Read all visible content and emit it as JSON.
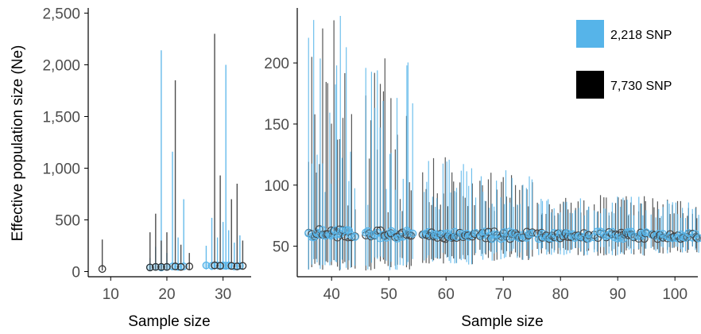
{
  "colors": {
    "snp_2218": "#56b4e9",
    "snp_7730": "#000000",
    "axis": "#000000",
    "tick_text": "#4d4d4d"
  },
  "ylabel": "Effective population size (Ne)",
  "legend": [
    {
      "label": "2,218 SNP",
      "color": "#56b4e9"
    },
    {
      "label": "7,730 SNP",
      "color": "#000000"
    }
  ],
  "chart_data": [
    {
      "type": "scatter",
      "panel": "left",
      "xlabel": "Sample size",
      "ylabel": "Effective population size (Ne)",
      "xlim": [
        6,
        35
      ],
      "ylim": [
        -50,
        2550
      ],
      "xticks": [
        10,
        20,
        30
      ],
      "xtick_labels": [
        "10",
        "20",
        "30"
      ],
      "yticks": [
        0,
        500,
        1000,
        1500,
        2000,
        2500
      ],
      "ytick_labels": [
        "0",
        "500",
        "1,000",
        "1,500",
        "2,000",
        "2,500"
      ],
      "grid": false,
      "series": [
        {
          "name": "2,218 SNP",
          "points": [
            {
              "x": 17,
              "y": 40,
              "lo": 10,
              "hi": 130
            },
            {
              "x": 18,
              "y": 45,
              "lo": 15,
              "hi": 240
            },
            {
              "x": 19,
              "y": 40,
              "lo": 10,
              "hi": 2140
            },
            {
              "x": 20,
              "y": 45,
              "lo": 15,
              "hi": 180
            },
            {
              "x": 21,
              "y": 50,
              "lo": 15,
              "hi": 1160
            },
            {
              "x": 22,
              "y": 45,
              "lo": 15,
              "hi": 330
            },
            {
              "x": 23,
              "y": 50,
              "lo": 20,
              "hi": 700
            },
            {
              "x": 27,
              "y": 60,
              "lo": 20,
              "hi": 250
            },
            {
              "x": 28,
              "y": 55,
              "lo": 15,
              "hi": 520
            },
            {
              "x": 29,
              "y": 60,
              "lo": 20,
              "hi": 330
            },
            {
              "x": 30,
              "y": 60,
              "lo": 20,
              "hi": 480
            },
            {
              "x": 30.5,
              "y": 55,
              "lo": 20,
              "hi": 2000
            },
            {
              "x": 31,
              "y": 60,
              "lo": 20,
              "hi": 400
            },
            {
              "x": 32,
              "y": 50,
              "lo": 20,
              "hi": 280
            },
            {
              "x": 33,
              "y": 55,
              "lo": 20,
              "hi": 350
            }
          ]
        },
        {
          "name": "7,730 SNP",
          "points": [
            {
              "x": 8.5,
              "y": 25,
              "lo": 10,
              "hi": 310
            },
            {
              "x": 17,
              "y": 40,
              "lo": 10,
              "hi": 380
            },
            {
              "x": 18,
              "y": 45,
              "lo": 10,
              "hi": 560
            },
            {
              "x": 19,
              "y": 45,
              "lo": 15,
              "hi": 300
            },
            {
              "x": 20,
              "y": 45,
              "lo": 15,
              "hi": 380
            },
            {
              "x": 21.5,
              "y": 50,
              "lo": 15,
              "hi": 1850
            },
            {
              "x": 22.5,
              "y": 45,
              "lo": 15,
              "hi": 260
            },
            {
              "x": 24,
              "y": 50,
              "lo": 20,
              "hi": 180
            },
            {
              "x": 28.5,
              "y": 60,
              "lo": 20,
              "hi": 2300
            },
            {
              "x": 29.5,
              "y": 55,
              "lo": 20,
              "hi": 930
            },
            {
              "x": 31.5,
              "y": 55,
              "lo": 20,
              "hi": 700
            },
            {
              "x": 32.5,
              "y": 50,
              "lo": 20,
              "hi": 850
            },
            {
              "x": 33.5,
              "y": 55,
              "lo": 20,
              "hi": 300
            }
          ]
        }
      ]
    },
    {
      "type": "scatter",
      "panel": "right",
      "xlabel": "Sample size",
      "xlim": [
        34,
        104
      ],
      "ylim": [
        25,
        245
      ],
      "xticks": [
        40,
        50,
        60,
        70,
        80,
        90,
        100
      ],
      "xtick_labels": [
        "40",
        "50",
        "60",
        "70",
        "80",
        "90",
        "100"
      ],
      "yticks": [
        50,
        100,
        150,
        200
      ],
      "ytick_labels": [
        "50",
        "100",
        "150",
        "200"
      ],
      "grid": false,
      "legend_position": "top-right",
      "groups": [
        {
          "range": [
            36,
            44
          ],
          "y": [
            57,
            64
          ],
          "lo": [
            30,
            40
          ],
          "hi": [
            80,
            240
          ]
        },
        {
          "range": [
            46,
            54
          ],
          "y": [
            56,
            63
          ],
          "lo": [
            30,
            42
          ],
          "hi": [
            75,
            205
          ]
        },
        {
          "range": [
            56,
            65
          ],
          "y": [
            56,
            62
          ],
          "lo": [
            35,
            45
          ],
          "hi": [
            80,
            123
          ]
        },
        {
          "range": [
            66,
            75
          ],
          "y": [
            56,
            62
          ],
          "lo": [
            38,
            48
          ],
          "hi": [
            78,
            115
          ]
        },
        {
          "range": [
            76,
            85
          ],
          "y": [
            56,
            61
          ],
          "lo": [
            42,
            50
          ],
          "hi": [
            75,
            90
          ]
        },
        {
          "range": [
            86,
            95
          ],
          "y": [
            56,
            62
          ],
          "lo": [
            42,
            50
          ],
          "hi": [
            75,
            92
          ]
        },
        {
          "range": [
            96,
            104
          ],
          "y": [
            56,
            61
          ],
          "lo": [
            44,
            50
          ],
          "hi": [
            72,
            90
          ]
        }
      ]
    }
  ]
}
